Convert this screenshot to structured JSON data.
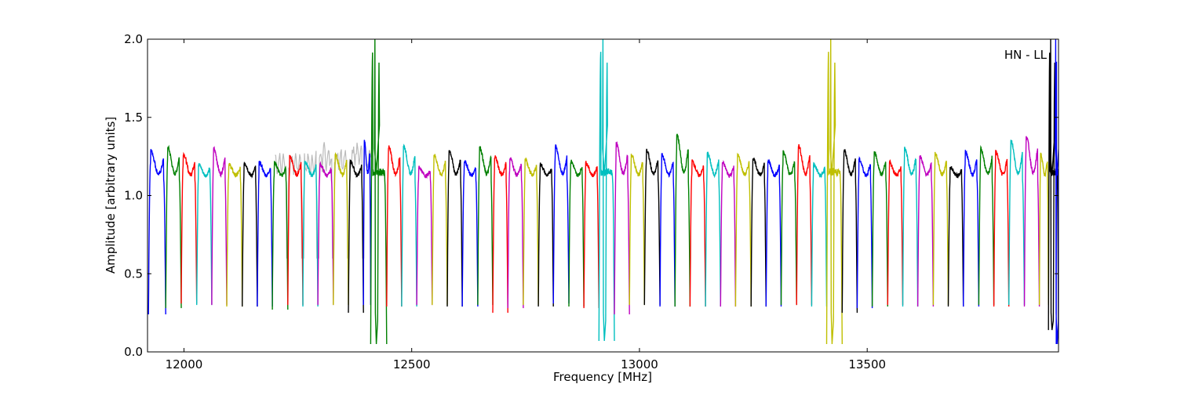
{
  "chart_data": {
    "type": "line",
    "title": "",
    "xlabel": "Frequency [MHz]",
    "ylabel": "Amplitude [arbitrary units]",
    "annotation": "HN - LL",
    "xlim": [
      11920,
      13920
    ],
    "ylim": [
      0.0,
      2.0
    ],
    "x_ticks": [
      12000,
      12500,
      13000,
      13500
    ],
    "y_ticks": [
      0.0,
      0.5,
      1.0,
      1.5,
      2.0
    ],
    "x_tick_labels": [
      "12000",
      "12500",
      "13000",
      "13500"
    ],
    "y_tick_labels": [
      "0.0",
      "0.5",
      "1.0",
      "1.5",
      "2.0"
    ],
    "grid": false,
    "colors": [
      "#0000ff",
      "#008000",
      "#ff0000",
      "#00bfbf",
      "#bf00bf",
      "#bfbf00",
      "#000000"
    ],
    "background_series_color": "#bbbbbb",
    "channels": [
      {
        "start": 11922,
        "end": 11960,
        "color": "#0000ff",
        "peak": 1.29,
        "min": 0.24
      },
      {
        "start": 11960,
        "end": 11994,
        "color": "#008000",
        "peak": 1.31,
        "min": 0.28
      },
      {
        "start": 11994,
        "end": 12028,
        "color": "#ff0000",
        "peak": 1.27,
        "min": 0.31
      },
      {
        "start": 12028,
        "end": 12061,
        "color": "#00bfbf",
        "peak": 1.2,
        "min": 0.3
      },
      {
        "start": 12061,
        "end": 12094,
        "color": "#bf00bf",
        "peak": 1.3,
        "min": 0.3
      },
      {
        "start": 12094,
        "end": 12128,
        "color": "#bfbf00",
        "peak": 1.2,
        "min": 0.29
      },
      {
        "start": 12128,
        "end": 12161,
        "color": "#000000",
        "peak": 1.21,
        "min": 0.29
      },
      {
        "start": 12161,
        "end": 12194,
        "color": "#0000ff",
        "peak": 1.21,
        "min": 0.29
      },
      {
        "start": 12194,
        "end": 12228,
        "color": "#008000",
        "peak": 1.21,
        "min": 0.27
      },
      {
        "start": 12228,
        "end": 12261,
        "color": "#ff0000",
        "peak": 1.25,
        "min": 0.3
      },
      {
        "start": 12261,
        "end": 12294,
        "color": "#00bfbf",
        "peak": 1.22,
        "min": 0.29
      },
      {
        "start": 12294,
        "end": 12328,
        "color": "#bf00bf",
        "peak": 1.2,
        "min": 0.3
      },
      {
        "start": 12328,
        "end": 12361,
        "color": "#bfbf00",
        "peak": 1.26,
        "min": 0.3
      },
      {
        "start": 12361,
        "end": 12394,
        "color": "#000000",
        "peak": 1.22,
        "min": 0.25
      },
      {
        "start": 12394,
        "end": 12410,
        "color": "#0000ff",
        "peak": 1.35,
        "min": 0.3
      },
      {
        "start": 12410,
        "end": 12445,
        "color": "#008000",
        "peak": 2.0,
        "min": 0.05
      },
      {
        "start": 12445,
        "end": 12478,
        "color": "#ff0000",
        "peak": 1.31,
        "min": 0.29
      },
      {
        "start": 12478,
        "end": 12511,
        "color": "#00bfbf",
        "peak": 1.32,
        "min": 0.29
      },
      {
        "start": 12511,
        "end": 12545,
        "color": "#bf00bf",
        "peak": 1.18,
        "min": 0.3
      },
      {
        "start": 12545,
        "end": 12578,
        "color": "#bfbf00",
        "peak": 1.26,
        "min": 0.3
      },
      {
        "start": 12578,
        "end": 12611,
        "color": "#000000",
        "peak": 1.29,
        "min": 0.29
      },
      {
        "start": 12611,
        "end": 12645,
        "color": "#0000ff",
        "peak": 1.22,
        "min": 0.29
      },
      {
        "start": 12645,
        "end": 12678,
        "color": "#008000",
        "peak": 1.31,
        "min": 0.3
      },
      {
        "start": 12678,
        "end": 12711,
        "color": "#ff0000",
        "peak": 1.25,
        "min": 0.25
      },
      {
        "start": 12711,
        "end": 12745,
        "color": "#bf00bf",
        "peak": 1.24,
        "min": 0.28
      },
      {
        "start": 12745,
        "end": 12778,
        "color": "#bfbf00",
        "peak": 1.23,
        "min": 0.3
      },
      {
        "start": 12778,
        "end": 12811,
        "color": "#000000",
        "peak": 1.2,
        "min": 0.29
      },
      {
        "start": 12811,
        "end": 12845,
        "color": "#0000ff",
        "peak": 1.32,
        "min": 0.31
      },
      {
        "start": 12845,
        "end": 12878,
        "color": "#008000",
        "peak": 1.22,
        "min": 0.29
      },
      {
        "start": 12878,
        "end": 12911,
        "color": "#ff0000",
        "peak": 1.21,
        "min": 0.28
      },
      {
        "start": 12911,
        "end": 12945,
        "color": "#00bfbf",
        "peak": 2.0,
        "min": 0.07
      },
      {
        "start": 12945,
        "end": 12978,
        "color": "#bf00bf",
        "peak": 1.33,
        "min": 0.24
      },
      {
        "start": 12978,
        "end": 13011,
        "color": "#bfbf00",
        "peak": 1.26,
        "min": 0.3
      },
      {
        "start": 13011,
        "end": 13045,
        "color": "#000000",
        "peak": 1.29,
        "min": 0.3
      },
      {
        "start": 13045,
        "end": 13078,
        "color": "#0000ff",
        "peak": 1.26,
        "min": 0.29
      },
      {
        "start": 13078,
        "end": 13111,
        "color": "#008000",
        "peak": 1.39,
        "min": 0.29
      },
      {
        "start": 13111,
        "end": 13145,
        "color": "#ff0000",
        "peak": 1.22,
        "min": 0.29
      },
      {
        "start": 13145,
        "end": 13178,
        "color": "#00bfbf",
        "peak": 1.27,
        "min": 0.29
      },
      {
        "start": 13178,
        "end": 13211,
        "color": "#bf00bf",
        "peak": 1.21,
        "min": 0.29
      },
      {
        "start": 13211,
        "end": 13245,
        "color": "#bfbf00",
        "peak": 1.26,
        "min": 0.29
      },
      {
        "start": 13245,
        "end": 13278,
        "color": "#000000",
        "peak": 1.24,
        "min": 0.29
      },
      {
        "start": 13278,
        "end": 13311,
        "color": "#0000ff",
        "peak": 1.22,
        "min": 0.29
      },
      {
        "start": 13311,
        "end": 13345,
        "color": "#008000",
        "peak": 1.28,
        "min": 0.3
      },
      {
        "start": 13345,
        "end": 13378,
        "color": "#ff0000",
        "peak": 1.32,
        "min": 0.3
      },
      {
        "start": 13378,
        "end": 13411,
        "color": "#00bfbf",
        "peak": 1.2,
        "min": 0.29
      },
      {
        "start": 13411,
        "end": 13445,
        "color": "#bfbf00",
        "peak": 2.0,
        "min": 0.05
      },
      {
        "start": 13445,
        "end": 13478,
        "color": "#000000",
        "peak": 1.29,
        "min": 0.25
      },
      {
        "start": 13478,
        "end": 13511,
        "color": "#0000ff",
        "peak": 1.23,
        "min": 0.28
      },
      {
        "start": 13511,
        "end": 13545,
        "color": "#008000",
        "peak": 1.28,
        "min": 0.29
      },
      {
        "start": 13545,
        "end": 13578,
        "color": "#ff0000",
        "peak": 1.21,
        "min": 0.3
      },
      {
        "start": 13578,
        "end": 13611,
        "color": "#00bfbf",
        "peak": 1.3,
        "min": 0.29
      },
      {
        "start": 13611,
        "end": 13645,
        "color": "#bf00bf",
        "peak": 1.25,
        "min": 0.29
      },
      {
        "start": 13645,
        "end": 13678,
        "color": "#bfbf00",
        "peak": 1.27,
        "min": 0.3
      },
      {
        "start": 13678,
        "end": 13711,
        "color": "#000000",
        "peak": 1.18,
        "min": 0.29
      },
      {
        "start": 13711,
        "end": 13745,
        "color": "#0000ff",
        "peak": 1.28,
        "min": 0.29
      },
      {
        "start": 13745,
        "end": 13778,
        "color": "#008000",
        "peak": 1.3,
        "min": 0.3
      },
      {
        "start": 13778,
        "end": 13811,
        "color": "#ff0000",
        "peak": 1.28,
        "min": 0.29
      },
      {
        "start": 13811,
        "end": 13845,
        "color": "#00bfbf",
        "peak": 1.35,
        "min": 0.3
      },
      {
        "start": 13845,
        "end": 13878,
        "color": "#bf00bf",
        "peak": 1.38,
        "min": 0.29
      },
      {
        "start": 13878,
        "end": 13898,
        "color": "#bfbf00",
        "peak": 1.27,
        "min": 0.3
      },
      {
        "start": 13898,
        "end": 13920,
        "color": "#000000",
        "peak": 2.0,
        "min": 0.14
      },
      {
        "start": 13915,
        "end": 13920,
        "color": "#0000ff",
        "peak": 2.0,
        "min": 0.05
      }
    ]
  }
}
